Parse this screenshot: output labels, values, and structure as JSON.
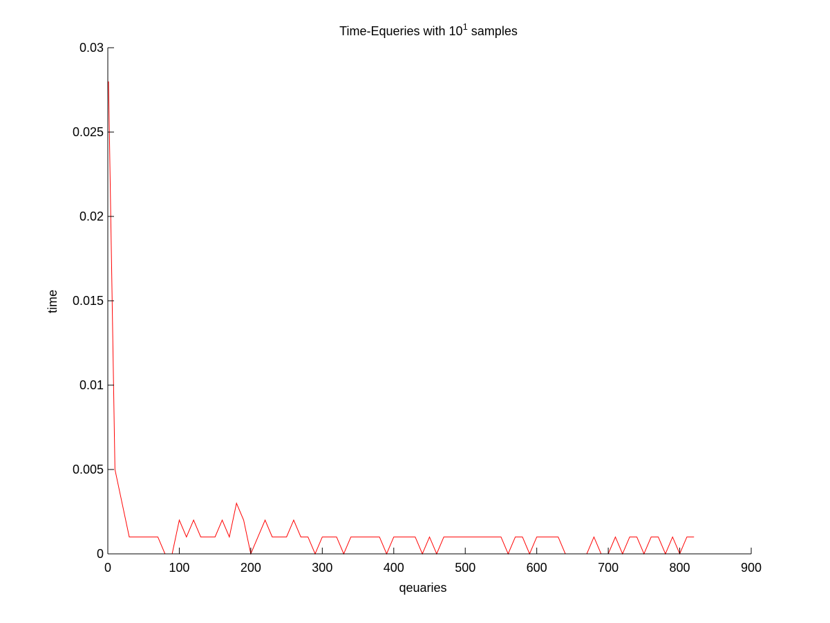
{
  "chart_data": {
    "type": "line",
    "title": {
      "prefix": "Time-Equeries with 10",
      "superscript": "1",
      "suffix": " samples"
    },
    "xlabel": "qeuaries",
    "ylabel": "time",
    "xlim": [
      0,
      900
    ],
    "ylim": [
      0,
      0.03
    ],
    "xticks": [
      0,
      100,
      200,
      300,
      400,
      500,
      600,
      700,
      800,
      900
    ],
    "xtick_labels": [
      "0",
      "100",
      "200",
      "300",
      "400",
      "500",
      "600",
      "700",
      "800",
      "900"
    ],
    "yticks": [
      0,
      0.005,
      0.01,
      0.015,
      0.02,
      0.025,
      0.03
    ],
    "ytick_labels": [
      "0",
      "0.005",
      "0.01",
      "0.015",
      "0.02",
      "0.025",
      "0.03"
    ],
    "grid": false,
    "series": [
      {
        "color": "#ff0000",
        "x": [
          1,
          10,
          20,
          30,
          40,
          50,
          60,
          70,
          80,
          90,
          100,
          110,
          120,
          130,
          140,
          150,
          160,
          170,
          180,
          190,
          200,
          210,
          220,
          230,
          240,
          250,
          260,
          270,
          280,
          290,
          300,
          310,
          320,
          330,
          340,
          350,
          360,
          370,
          380,
          390,
          400,
          410,
          420,
          430,
          440,
          450,
          460,
          470,
          480,
          490,
          500,
          510,
          520,
          530,
          540,
          550,
          560,
          570,
          580,
          590,
          600,
          610,
          620,
          630,
          640,
          650,
          660,
          670,
          680,
          690,
          700,
          710,
          720,
          730,
          740,
          750,
          760,
          770,
          780,
          790,
          800,
          810,
          820
        ],
        "y": [
          0.028,
          0.005,
          0.003,
          0.001,
          0.001,
          0.001,
          0.001,
          0.001,
          0,
          0,
          0.002,
          0.001,
          0.002,
          0.001,
          0.001,
          0.001,
          0.002,
          0.001,
          0.003,
          0.002,
          0,
          0.001,
          0.002,
          0.001,
          0.001,
          0.001,
          0.002,
          0.001,
          0.001,
          0,
          0.001,
          0.001,
          0.001,
          0,
          0.001,
          0.001,
          0.001,
          0.001,
          0.001,
          0,
          0.001,
          0.001,
          0.001,
          0.001,
          0,
          0.001,
          0,
          0.001,
          0.001,
          0.001,
          0.001,
          0.001,
          0.001,
          0.001,
          0.001,
          0.001,
          0,
          0.001,
          0.001,
          0,
          0.001,
          0.001,
          0.001,
          0.001,
          0,
          0,
          0,
          0,
          0.001,
          0,
          0,
          0.001,
          0,
          0.001,
          0.001,
          0,
          0.001,
          0.001,
          0,
          0.001,
          0,
          0.001,
          0.001
        ]
      }
    ]
  }
}
